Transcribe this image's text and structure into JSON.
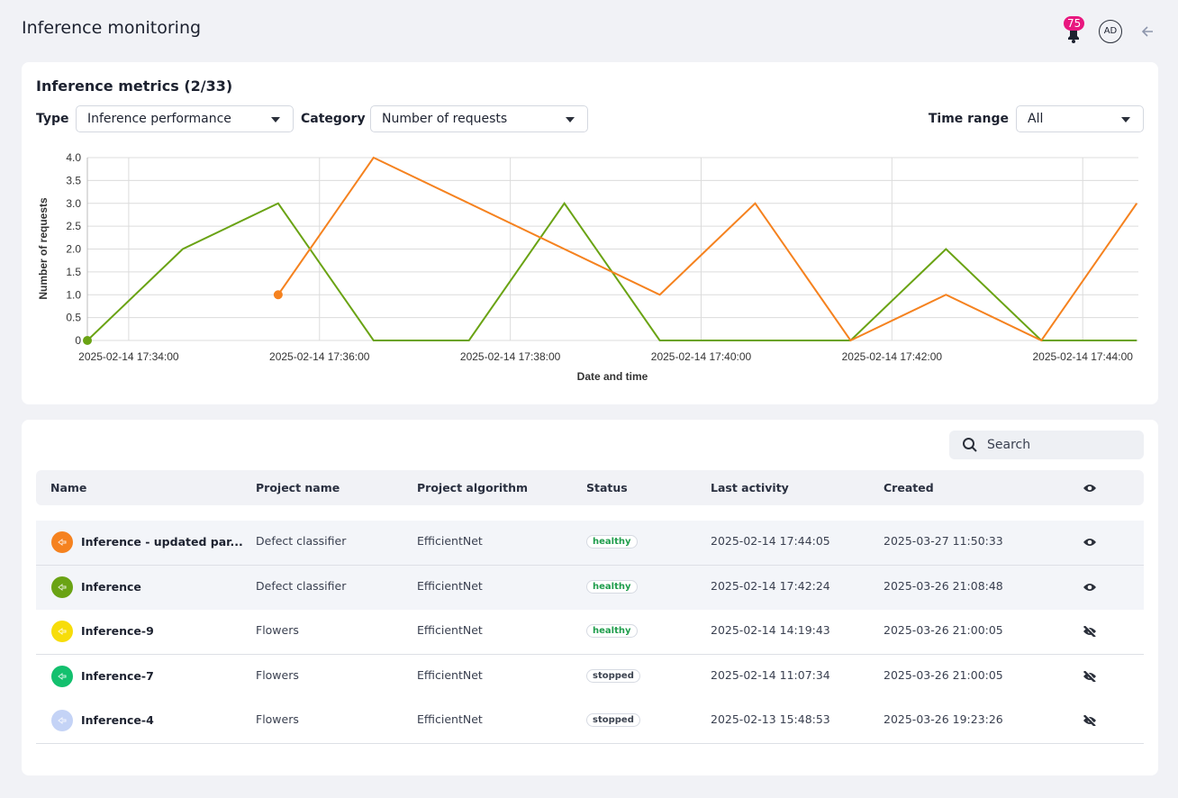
{
  "header": {
    "title": "Inference monitoring",
    "notifications": 75,
    "avatar": "AD"
  },
  "metrics": {
    "title": "Inference metrics (2/33)",
    "filters": [
      {
        "label": "Type",
        "value": "Inference performance"
      },
      {
        "label": "Category",
        "value": "Number of requests"
      },
      {
        "label": "Time range",
        "value": "All"
      }
    ]
  },
  "chart_data": {
    "type": "line",
    "ylabel": "Number of requests",
    "xlabel": "Date and time",
    "series": [
      {
        "color": "#6aa314",
        "x": [
          "2025-02-14 17:33:34",
          "2025-02-14 17:34:34",
          "2025-02-14 17:35:34",
          "2025-02-14 17:36:34",
          "2025-02-14 17:37:34",
          "2025-02-14 17:38:34",
          "2025-02-14 17:39:34",
          "2025-02-14 17:40:34",
          "2025-02-14 17:41:34",
          "2025-02-14 17:42:34",
          "2025-02-14 17:43:34",
          "2025-02-14 17:44:34"
        ],
        "values": [
          0,
          2,
          3,
          0,
          0,
          3,
          0,
          0,
          0,
          2,
          0,
          0
        ]
      },
      {
        "color": "#f5821f",
        "x": [
          "2025-02-14 17:35:34",
          "2025-02-14 17:36:34",
          "2025-02-14 17:39:34",
          "2025-02-14 17:40:34",
          "2025-02-14 17:41:34",
          "2025-02-14 17:42:34",
          "2025-02-14 17:43:34",
          "2025-02-14 17:44:34"
        ],
        "values": [
          1,
          4,
          1,
          3,
          0,
          1,
          0,
          3
        ]
      }
    ],
    "xlim": [
      "2025-02-14 17:33:34",
      "2025-02-14 17:44:35"
    ],
    "xticks": [
      "2025-02-14 17:34:00",
      "2025-02-14 17:36:00",
      "2025-02-14 17:38:00",
      "2025-02-14 17:40:00",
      "2025-02-14 17:42:00",
      "2025-02-14 17:44:00"
    ],
    "ylim": [
      0,
      4
    ],
    "yticks": [
      0,
      0.5,
      {
        "value": 1,
        "label": "1.0"
      },
      1.5,
      {
        "value": 2,
        "label": "2.0"
      },
      2.5,
      {
        "value": 3,
        "label": "3.0"
      },
      3.5,
      {
        "value": 4,
        "label": "4.0"
      }
    ],
    "grid": true
  },
  "table": {
    "search_placeholder": "Search",
    "columns": [
      "Name",
      "Project name",
      "Project algorithm",
      "Status",
      "Last activity",
      "Created"
    ],
    "rows": [
      {
        "name": "Inference - updated par...",
        "color": "#f5821f",
        "project": "Defect classifier",
        "algorithm": "EfficientNet",
        "status": "healthy",
        "status_color": "#1f9d4c",
        "last_activity": "2025-02-14 17:44:05",
        "created": "2025-03-27 11:50:33",
        "visible": true,
        "selected": true
      },
      {
        "name": "Inference",
        "color": "#6aa314",
        "project": "Defect classifier",
        "algorithm": "EfficientNet",
        "status": "healthy",
        "status_color": "#1f9d4c",
        "last_activity": "2025-02-14 17:42:24",
        "created": "2025-03-26 21:08:48",
        "visible": true,
        "selected": true
      },
      {
        "name": "Inference-9",
        "color": "#f7dd0a",
        "project": "Flowers",
        "algorithm": "EfficientNet",
        "status": "healthy",
        "status_color": "#1f9d4c",
        "last_activity": "2025-02-14 14:19:43",
        "created": "2025-03-26 21:00:05",
        "visible": false,
        "selected": false
      },
      {
        "name": "Inference-7",
        "color": "#13c06e",
        "project": "Flowers",
        "algorithm": "EfficientNet",
        "status": "stopped",
        "status_color": "#3c4350",
        "last_activity": "2025-02-14 11:07:34",
        "created": "2025-03-26 21:00:05",
        "visible": false,
        "selected": false
      },
      {
        "name": "Inference-4",
        "color": "#c4d3f6",
        "project": "Flowers",
        "algorithm": "EfficientNet",
        "status": "stopped",
        "status_color": "#3c4350",
        "last_activity": "2025-02-13 15:48:53",
        "created": "2025-03-26 19:23:26",
        "visible": false,
        "selected": false
      }
    ]
  }
}
